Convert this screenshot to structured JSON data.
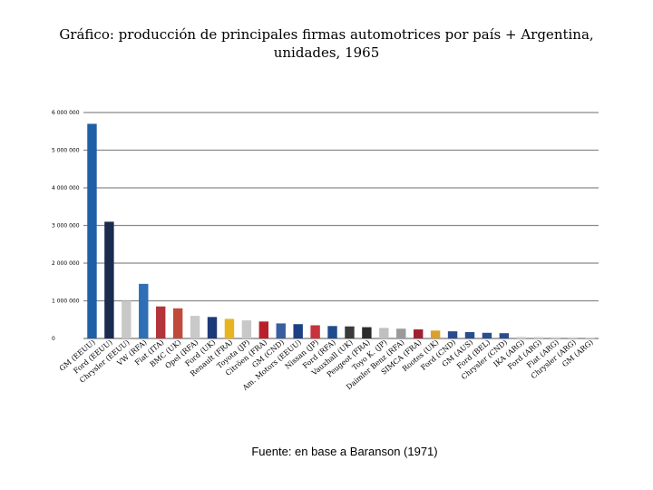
{
  "title": "Gráfico: producción de principales firmas automotrices por país + Argentina, unidades, 1965",
  "source": "Fuente: en base a Baranson (1971)",
  "colors": {
    "grid": "#8a8a8a",
    "axis": "#555555"
  },
  "chart_data": {
    "type": "bar",
    "title": "Gráfico: producción de principales firmas automotrices por país + Argentina, unidades, 1965",
    "xlabel": "",
    "ylabel": "",
    "ylim": [
      0,
      6000000
    ],
    "yticks": [
      0,
      1000000,
      2000000,
      3000000,
      4000000,
      5000000,
      6000000
    ],
    "ytick_labels": [
      "0",
      "1 000 000",
      "2 000 000",
      "3 000 000",
      "4 000 000",
      "5 000 000",
      "6 000 000"
    ],
    "grid": true,
    "categories": [
      "GM (EEUU)",
      "Ford (EEUU)",
      "Chrysler (EEUU)",
      "VW (RFA)",
      "Fiat (ITA)",
      "BMC (UK)",
      "Opel (RFA)",
      "Ford (UK)",
      "Renault (FRA)",
      "Toyota (JP)",
      "Citröen (FRA)",
      "GM (CND)",
      "Am. Motors (EEUU)",
      "Nissan (JP)",
      "Ford (RFA)",
      "Vauxhall (UK)",
      "Peugeot (FRA)",
      "Toyo K. (JP)",
      "Daimler Benz (RFA)",
      "SIMCA (FRA)",
      "Rootes (UK)",
      "Ford (CND)",
      "GM (AUS)",
      "Ford (BEL)",
      "Chrysler (CND)",
      "IKA (ARG)",
      "Ford (ARG)",
      "Fiat (ARG)",
      "Chrysler (ARG)",
      "GM (ARG)"
    ],
    "values": [
      5700000,
      3100000,
      1000000,
      1450000,
      850000,
      800000,
      600000,
      570000,
      520000,
      480000,
      450000,
      400000,
      380000,
      350000,
      330000,
      320000,
      300000,
      280000,
      260000,
      240000,
      210000,
      190000,
      170000,
      150000,
      140000,
      50000,
      45000,
      40000,
      35000,
      30000
    ],
    "bar_colors": [
      "#1f5fa8",
      "#1b2a4e",
      "#c8c8c8",
      "#2e6fb5",
      "#b3343b",
      "#c04a3a",
      "#c9c9c9",
      "#1d3a78",
      "#e8b520",
      "#c8c8c8",
      "#b8202b",
      "#3a5fa0",
      "#1c3f85",
      "#c8323c",
      "#1f4c8f",
      "#3a3a3a",
      "#2b2b2b",
      "#c0c0c0",
      "#9a9a9a",
      "#a02030",
      "#d9a12a",
      "#2a4d8f",
      "#2a4d8f",
      "#2a4d8f",
      "#2a4d8f",
      "#d8d8d8",
      "#d8d8d8",
      "#d8d8d8",
      "#d8d8d8",
      "#d8d8d8"
    ]
  }
}
